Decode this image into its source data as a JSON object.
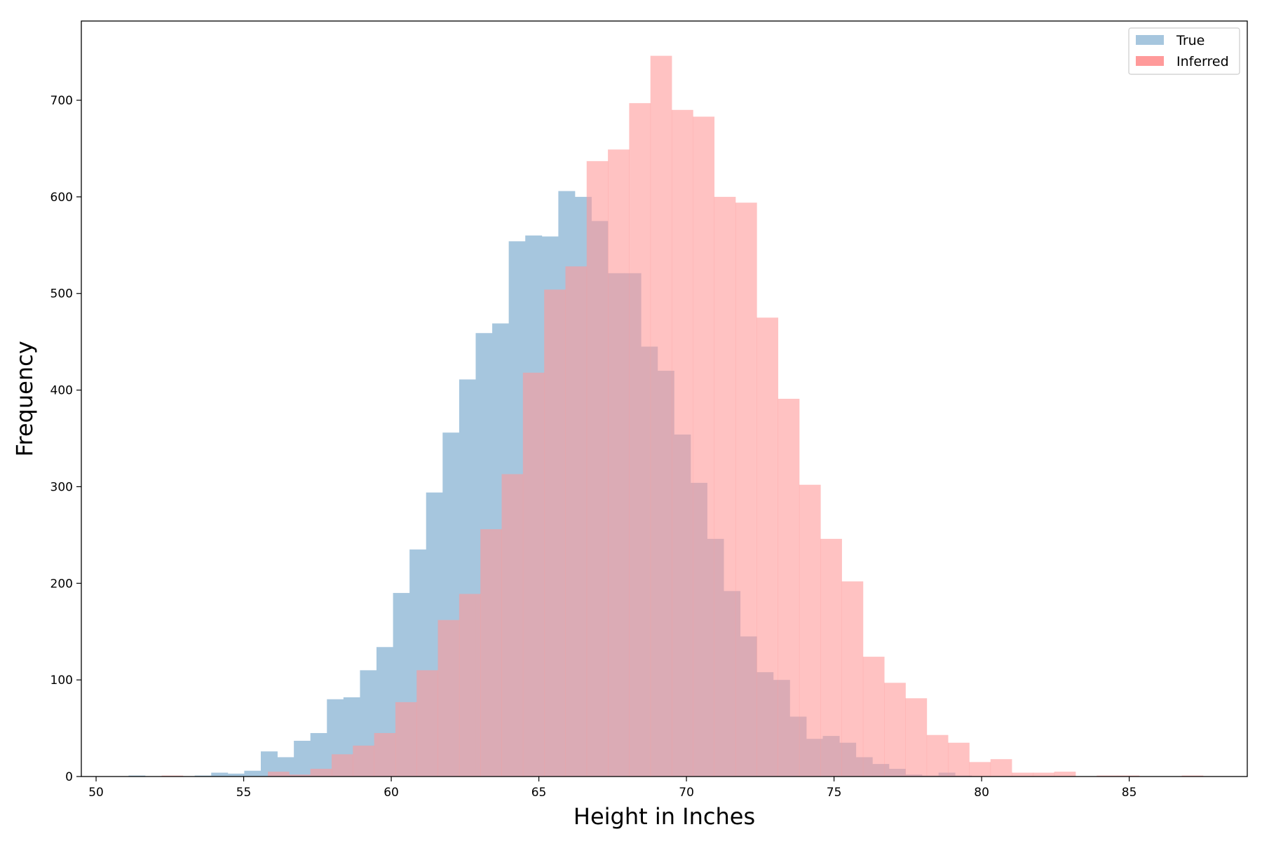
{
  "chart_data": {
    "type": "bar",
    "xlabel": "Height in Inches",
    "ylabel": "Frequency",
    "xlim": [
      49.5,
      89.0
    ],
    "ylim": [
      0,
      782
    ],
    "xticks": [
      50,
      55,
      60,
      65,
      70,
      75,
      80,
      85
    ],
    "yticks": [
      0,
      100,
      200,
      300,
      400,
      500,
      600,
      700
    ],
    "grid": false,
    "legend": {
      "position": "top-right"
    },
    "series": [
      {
        "name": "True",
        "color": "#a6c6de",
        "bin_edges": [
          51.1,
          51.66,
          52.22,
          52.78,
          53.34,
          53.9,
          54.46,
          55.02,
          55.58,
          56.14,
          56.7,
          57.26,
          57.82,
          58.38,
          58.94,
          59.5,
          60.06,
          60.62,
          61.18,
          61.74,
          62.3,
          62.86,
          63.42,
          63.98,
          64.54,
          65.1,
          65.66,
          66.22,
          66.78,
          67.34,
          67.9,
          68.46,
          69.02,
          69.58,
          70.14,
          70.7,
          71.26,
          71.82,
          72.38,
          72.94,
          73.5,
          74.06,
          74.62,
          75.18,
          75.74,
          76.3,
          76.86,
          77.42,
          77.98,
          78.54,
          79.1,
          79.66,
          80.22,
          80.78,
          81.34,
          81.9,
          82.46,
          83.02,
          83.58,
          84.14,
          84.7,
          85.26,
          85.82,
          86.38,
          86.94,
          87.5
        ],
        "values": [
          1,
          0,
          0,
          0,
          1,
          4,
          3,
          6,
          26,
          20,
          37,
          45,
          80,
          82,
          110,
          134,
          190,
          235,
          294,
          356,
          411,
          459,
          469,
          554,
          560,
          559,
          606,
          600,
          575,
          521,
          521,
          445,
          420,
          354,
          304,
          246,
          192,
          145,
          108,
          100,
          62,
          39,
          42,
          35,
          20,
          13,
          8,
          2,
          1,
          4,
          1,
          0,
          0,
          0,
          0,
          0,
          0,
          0,
          0,
          0,
          0,
          0,
          0,
          0,
          0
        ]
      },
      {
        "name": "Inferred",
        "color": "#ff9a9a",
        "bin_edges": [
          51.5,
          52.22,
          52.94,
          53.66,
          54.38,
          55.1,
          55.82,
          56.54,
          57.26,
          57.98,
          58.7,
          59.42,
          60.14,
          60.86,
          61.58,
          62.3,
          63.02,
          63.74,
          64.46,
          65.18,
          65.9,
          66.62,
          67.34,
          68.06,
          68.78,
          69.5,
          70.22,
          70.94,
          71.66,
          72.38,
          73.1,
          73.82,
          74.54,
          75.26,
          75.98,
          76.7,
          77.42,
          78.14,
          78.86,
          79.58,
          80.3,
          81.02,
          81.74,
          82.46,
          83.18,
          83.9,
          84.62,
          85.34,
          86.06,
          86.78,
          87.5
        ],
        "values": [
          0,
          1,
          0,
          0,
          0,
          0,
          5,
          2,
          8,
          23,
          32,
          45,
          77,
          110,
          162,
          189,
          256,
          313,
          418,
          504,
          528,
          637,
          649,
          697,
          746,
          690,
          683,
          600,
          594,
          475,
          391,
          302,
          246,
          202,
          124,
          97,
          81,
          43,
          35,
          15,
          18,
          4,
          4,
          5,
          0,
          1,
          1,
          0,
          0,
          1
        ]
      }
    ]
  }
}
